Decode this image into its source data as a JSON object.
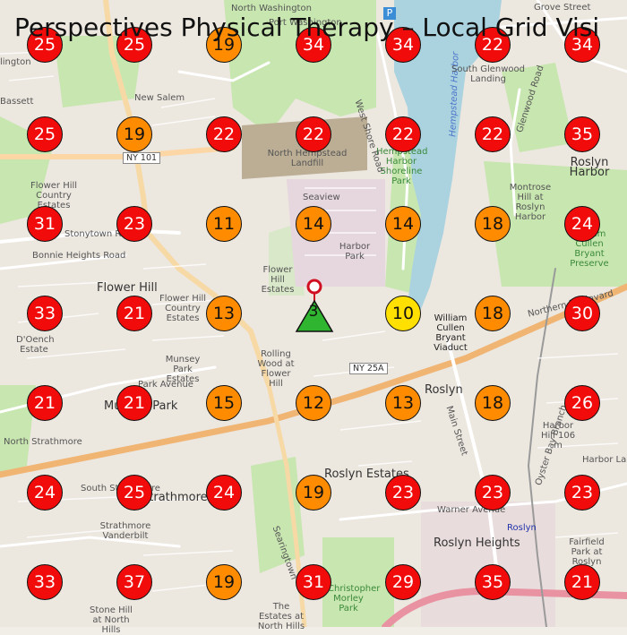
{
  "title": "Perspectives Physical Therapy – Local Grid Visi",
  "center": {
    "rank": "3",
    "color": "#2fb52f"
  },
  "legend_colors": {
    "red": "#f10b0b",
    "orange": "#ff8c00",
    "yellow": "#ffe000",
    "green": "#2fb52f"
  },
  "grid": [
    [
      {
        "rank": "25",
        "level": "red"
      },
      {
        "rank": "25",
        "level": "red"
      },
      {
        "rank": "19",
        "level": "orange"
      },
      {
        "rank": "34",
        "level": "red"
      },
      {
        "rank": "34",
        "level": "red"
      },
      {
        "rank": "22",
        "level": "red"
      },
      {
        "rank": "34",
        "level": "red"
      }
    ],
    [
      {
        "rank": "25",
        "level": "red"
      },
      {
        "rank": "19",
        "level": "orange"
      },
      {
        "rank": "22",
        "level": "red"
      },
      {
        "rank": "22",
        "level": "red"
      },
      {
        "rank": "22",
        "level": "red"
      },
      {
        "rank": "22",
        "level": "red"
      },
      {
        "rank": "35",
        "level": "red"
      }
    ],
    [
      {
        "rank": "31",
        "level": "red"
      },
      {
        "rank": "23",
        "level": "red"
      },
      {
        "rank": "11",
        "level": "orange"
      },
      {
        "rank": "14",
        "level": "orange"
      },
      {
        "rank": "14",
        "level": "orange"
      },
      {
        "rank": "18",
        "level": "orange"
      },
      {
        "rank": "24",
        "level": "red"
      }
    ],
    [
      {
        "rank": "33",
        "level": "red"
      },
      {
        "rank": "21",
        "level": "red"
      },
      {
        "rank": "13",
        "level": "orange"
      },
      null,
      {
        "rank": "10",
        "level": "yellow"
      },
      {
        "rank": "18",
        "level": "orange"
      },
      {
        "rank": "30",
        "level": "red"
      }
    ],
    [
      {
        "rank": "21",
        "level": "red"
      },
      {
        "rank": "21",
        "level": "red"
      },
      {
        "rank": "15",
        "level": "orange"
      },
      {
        "rank": "12",
        "level": "orange"
      },
      {
        "rank": "13",
        "level": "orange"
      },
      {
        "rank": "18",
        "level": "orange"
      },
      {
        "rank": "26",
        "level": "red"
      }
    ],
    [
      {
        "rank": "24",
        "level": "red"
      },
      {
        "rank": "25",
        "level": "red"
      },
      {
        "rank": "24",
        "level": "red"
      },
      {
        "rank": "19",
        "level": "orange"
      },
      {
        "rank": "23",
        "level": "red"
      },
      {
        "rank": "23",
        "level": "red"
      },
      {
        "rank": "23",
        "level": "red"
      }
    ],
    [
      {
        "rank": "33",
        "level": "red"
      },
      {
        "rank": "37",
        "level": "red"
      },
      {
        "rank": "19",
        "level": "orange"
      },
      {
        "rank": "31",
        "level": "red"
      },
      {
        "rank": "29",
        "level": "red"
      },
      {
        "rank": "35",
        "level": "red"
      },
      {
        "rank": "21",
        "level": "red"
      }
    ]
  ],
  "map_labels": {
    "port_washington": "Port Washington",
    "new_salem": "New Salem",
    "north_hempstead_landfill": "North Hempstead Landfill",
    "seaview": "Seaview",
    "harbor_park": "Harbor Park",
    "hempstead_harbor_shoreline_park": "Hempstead Harbor Shoreline Park",
    "hempstead_harbor": "Hempstead Harbor",
    "south_glenwood_landing": "South Glenwood Landing",
    "grove_street": "Grove Street",
    "roslyn_harbor": "Roslyn Harbor",
    "montrose_hill_roslyn_harbor": "Montrose Hill at Roslyn Harbor",
    "william_cullen_bryant_preserve": "William Cullen Bryant Preserve",
    "flower_hill_country_estates": "Flower Hill Country Estates",
    "stonytown_road": "Stonytown Road",
    "bonnie_heights_road": "Bonnie Heights Road",
    "flower_hill": "Flower Hill",
    "flower_hill_estates": "Flower Hill Estates",
    "flower_hill_country_estates_2": "Flower Hill Country Estates",
    "doench_estate": "D'Oench Estate",
    "munsey_park_estates": "Munsey Park Estates",
    "park_avenue": "Park Avenue",
    "munsey_park": "Munsey Park",
    "rolling_wood": "Rolling Wood at Flower Hill",
    "william_cullen_bryant_viaduct": "William Cullen Bryant Viaduct",
    "northern_boulevard": "Northern Boulevard",
    "roslyn": "Roslyn",
    "north_strathmore": "North Strathmore",
    "south_strathmore": "South Strathmore",
    "strathmore": "Strathmore",
    "roslyn_estates": "Roslyn Estates",
    "strathmore_vanderbilt": "Strathmore Vanderbilt",
    "warner_avenue": "Warner Avenue",
    "roslyn_heights": "Roslyn Heights",
    "roslyn_station": "Roslyn",
    "fairfield_park": "Fairfield Park at Roslyn",
    "stone_hill": "Stone Hill at North Hills",
    "the_estates_north_hills": "The Estates at North Hills",
    "christopher_morley_park": "Christopher Morley Park",
    "west_shore_road": "West Shore Road",
    "glenwood_road": "Glenwood Road",
    "main_street": "Main Street",
    "oyster_bay_branch": "Oyster Bay Branch",
    "searingtown": "Searingtown",
    "harbor_hill": "Harbor Hill 106 m",
    "harbor_lane": "Harbor La",
    "north_washington": "North Washington",
    "port_washington_south": "Port Washington",
    "bassett": "Bassett",
    "lington": "lington",
    "marks_on_jones": "Monrose Hill"
  },
  "shields": {
    "ny101": "NY 101",
    "ny25a": "NY 25A"
  },
  "parking_symbol": "P"
}
